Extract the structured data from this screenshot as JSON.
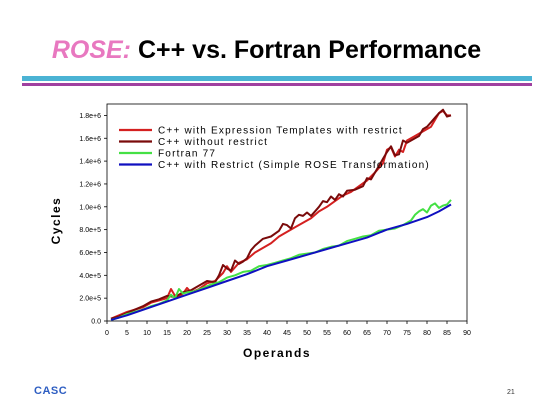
{
  "slide": {
    "title_prefix": "ROSE:",
    "title_rest": " C++ vs. Fortran Performance",
    "footer_logo": "CASC",
    "page_number": "21"
  },
  "colors": {
    "title_accent": "#e878c0",
    "bar_top": "#4bb3d4",
    "bar_bottom": "#a040a0",
    "logo": "#2e5ec2"
  },
  "chart_data": {
    "type": "line",
    "xlabel": "Operands",
    "ylabel": "Cycles",
    "xlim": [
      0,
      90
    ],
    "ylim": [
      0,
      1900000
    ],
    "xticks": [
      0,
      5,
      10,
      15,
      20,
      25,
      30,
      35,
      40,
      45,
      50,
      55,
      60,
      65,
      70,
      75,
      80,
      85,
      90
    ],
    "yticks": [
      0,
      200000,
      400000,
      600000,
      800000,
      1000000,
      1200000,
      1400000,
      1600000,
      1800000
    ],
    "ytick_labels": [
      "0.0",
      "2.0e+5",
      "4.0e+5",
      "6.0e+5",
      "8.0e+5",
      "1.0e+6",
      "1.2e+6",
      "1.4e+6",
      "1.6e+6",
      "1.8e+6"
    ],
    "grid": false,
    "legend_position": "top-left",
    "series": [
      {
        "name": "C++ with Expression Templates with restrict",
        "color": "#d42020",
        "points": [
          [
            1,
            20000
          ],
          [
            3,
            50000
          ],
          [
            5,
            80000
          ],
          [
            7,
            100000
          ],
          [
            9,
            120000
          ],
          [
            11,
            160000
          ],
          [
            13,
            180000
          ],
          [
            15,
            200000
          ],
          [
            16,
            280000
          ],
          [
            17,
            220000
          ],
          [
            18,
            210000
          ],
          [
            19,
            240000
          ],
          [
            20,
            290000
          ],
          [
            21,
            250000
          ],
          [
            23,
            280000
          ],
          [
            25,
            330000
          ],
          [
            27,
            350000
          ],
          [
            29,
            420000
          ],
          [
            30,
            480000
          ],
          [
            31,
            430000
          ],
          [
            33,
            510000
          ],
          [
            35,
            540000
          ],
          [
            37,
            600000
          ],
          [
            39,
            640000
          ],
          [
            41,
            680000
          ],
          [
            43,
            740000
          ],
          [
            45,
            780000
          ],
          [
            47,
            820000
          ],
          [
            49,
            860000
          ],
          [
            51,
            900000
          ],
          [
            53,
            960000
          ],
          [
            55,
            1000000
          ],
          [
            57,
            1050000
          ],
          [
            59,
            1100000
          ],
          [
            61,
            1130000
          ],
          [
            63,
            1180000
          ],
          [
            65,
            1230000
          ],
          [
            67,
            1300000
          ],
          [
            69,
            1380000
          ],
          [
            70,
            1500000
          ],
          [
            71,
            1520000
          ],
          [
            72,
            1440000
          ],
          [
            73,
            1500000
          ],
          [
            74,
            1480000
          ],
          [
            75,
            1580000
          ],
          [
            77,
            1620000
          ],
          [
            79,
            1660000
          ],
          [
            81,
            1700000
          ],
          [
            83,
            1820000
          ],
          [
            84,
            1840000
          ],
          [
            85,
            1800000
          ],
          [
            86,
            1800000
          ]
        ]
      },
      {
        "name": "C++ without restrict",
        "color": "#7a0a0a",
        "points": [
          [
            1,
            20000
          ],
          [
            3,
            40000
          ],
          [
            5,
            70000
          ],
          [
            7,
            100000
          ],
          [
            9,
            130000
          ],
          [
            11,
            170000
          ],
          [
            13,
            190000
          ],
          [
            15,
            220000
          ],
          [
            17,
            210000
          ],
          [
            19,
            250000
          ],
          [
            21,
            270000
          ],
          [
            23,
            310000
          ],
          [
            25,
            350000
          ],
          [
            27,
            340000
          ],
          [
            28,
            400000
          ],
          [
            29,
            490000
          ],
          [
            30,
            460000
          ],
          [
            31,
            440000
          ],
          [
            32,
            530000
          ],
          [
            33,
            500000
          ],
          [
            34,
            520000
          ],
          [
            35,
            550000
          ],
          [
            36,
            620000
          ],
          [
            37,
            660000
          ],
          [
            39,
            720000
          ],
          [
            41,
            740000
          ],
          [
            43,
            790000
          ],
          [
            44,
            850000
          ],
          [
            45,
            840000
          ],
          [
            46,
            810000
          ],
          [
            47,
            900000
          ],
          [
            48,
            930000
          ],
          [
            49,
            920000
          ],
          [
            50,
            950000
          ],
          [
            51,
            920000
          ],
          [
            52,
            960000
          ],
          [
            53,
            1000000
          ],
          [
            54,
            1050000
          ],
          [
            55,
            1040000
          ],
          [
            56,
            1090000
          ],
          [
            57,
            1060000
          ],
          [
            58,
            1110000
          ],
          [
            59,
            1090000
          ],
          [
            60,
            1140000
          ],
          [
            62,
            1150000
          ],
          [
            64,
            1180000
          ],
          [
            65,
            1250000
          ],
          [
            66,
            1240000
          ],
          [
            67,
            1300000
          ],
          [
            68,
            1360000
          ],
          [
            69,
            1420000
          ],
          [
            70,
            1480000
          ],
          [
            71,
            1530000
          ],
          [
            72,
            1450000
          ],
          [
            73,
            1460000
          ],
          [
            74,
            1580000
          ],
          [
            75,
            1560000
          ],
          [
            76,
            1580000
          ],
          [
            77,
            1600000
          ],
          [
            78,
            1620000
          ],
          [
            79,
            1680000
          ],
          [
            80,
            1700000
          ],
          [
            81,
            1740000
          ],
          [
            82,
            1780000
          ],
          [
            83,
            1820000
          ],
          [
            84,
            1850000
          ],
          [
            85,
            1790000
          ],
          [
            86,
            1800000
          ]
        ]
      },
      {
        "name": "Fortran 77",
        "color": "#44e044",
        "points": [
          [
            1,
            10000
          ],
          [
            3,
            30000
          ],
          [
            5,
            60000
          ],
          [
            7,
            80000
          ],
          [
            9,
            100000
          ],
          [
            11,
            130000
          ],
          [
            13,
            150000
          ],
          [
            15,
            180000
          ],
          [
            16,
            230000
          ],
          [
            17,
            200000
          ],
          [
            18,
            280000
          ],
          [
            19,
            240000
          ],
          [
            20,
            250000
          ],
          [
            22,
            260000
          ],
          [
            24,
            290000
          ],
          [
            26,
            320000
          ],
          [
            28,
            340000
          ],
          [
            30,
            380000
          ],
          [
            32,
            400000
          ],
          [
            34,
            430000
          ],
          [
            36,
            440000
          ],
          [
            38,
            480000
          ],
          [
            40,
            490000
          ],
          [
            42,
            510000
          ],
          [
            44,
            530000
          ],
          [
            46,
            550000
          ],
          [
            48,
            580000
          ],
          [
            50,
            590000
          ],
          [
            52,
            600000
          ],
          [
            54,
            630000
          ],
          [
            56,
            650000
          ],
          [
            58,
            660000
          ],
          [
            60,
            700000
          ],
          [
            62,
            720000
          ],
          [
            64,
            740000
          ],
          [
            66,
            750000
          ],
          [
            68,
            790000
          ],
          [
            70,
            800000
          ],
          [
            72,
            810000
          ],
          [
            74,
            840000
          ],
          [
            76,
            880000
          ],
          [
            77,
            930000
          ],
          [
            78,
            960000
          ],
          [
            79,
            980000
          ],
          [
            80,
            950000
          ],
          [
            81,
            1010000
          ],
          [
            82,
            1030000
          ],
          [
            83,
            990000
          ],
          [
            84,
            1010000
          ],
          [
            85,
            1020000
          ],
          [
            86,
            1060000
          ]
        ]
      },
      {
        "name": "C++ with Restrict (Simple ROSE Transformation)",
        "color": "#1010c0",
        "points": [
          [
            1,
            10000
          ],
          [
            5,
            50000
          ],
          [
            10,
            110000
          ],
          [
            15,
            170000
          ],
          [
            20,
            230000
          ],
          [
            25,
            290000
          ],
          [
            30,
            350000
          ],
          [
            35,
            410000
          ],
          [
            40,
            480000
          ],
          [
            45,
            530000
          ],
          [
            50,
            580000
          ],
          [
            55,
            630000
          ],
          [
            60,
            680000
          ],
          [
            65,
            730000
          ],
          [
            70,
            800000
          ],
          [
            75,
            850000
          ],
          [
            80,
            910000
          ],
          [
            83,
            960000
          ],
          [
            86,
            1020000
          ]
        ]
      }
    ]
  }
}
